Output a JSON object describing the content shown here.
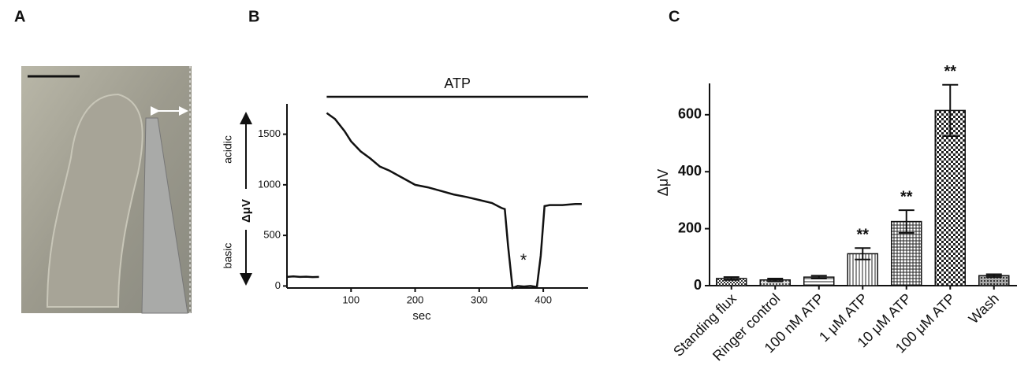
{
  "figure": {
    "panel_a_label": "A"
  },
  "chart_data": [
    {
      "type": "line",
      "label": "B",
      "xlabel": "sec",
      "ylabel": "ΔμV",
      "annotations": {
        "bar_label": "ATP",
        "marker": "*",
        "up": "acidic",
        "down": "basic"
      },
      "x": [
        0,
        10,
        20,
        30,
        40,
        50,
        55,
        62,
        75,
        90,
        100,
        115,
        130,
        145,
        160,
        180,
        200,
        220,
        240,
        260,
        280,
        300,
        320,
        335,
        340,
        345,
        352,
        360,
        370,
        380,
        390,
        396,
        402,
        410,
        430,
        450,
        460
      ],
      "values": [
        90,
        95,
        90,
        92,
        88,
        90,
        null,
        1710,
        1650,
        1530,
        1430,
        1330,
        1260,
        1180,
        1140,
        1070,
        1000,
        975,
        940,
        905,
        880,
        850,
        820,
        770,
        760,
        400,
        -20,
        0,
        -5,
        0,
        -10,
        300,
        790,
        800,
        800,
        810,
        810
      ],
      "color": "#111111",
      "xlim": [
        0,
        470
      ],
      "xticks": [
        100,
        200,
        300,
        400
      ],
      "ylim": [
        -20,
        1800
      ],
      "yticks": [
        0,
        500,
        1000,
        1500
      ]
    },
    {
      "type": "bar",
      "label": "C",
      "ylabel": "ΔμV",
      "categories": [
        "Standing flux",
        "Ringer control",
        "100 nM ATP",
        "1 μM ATP",
        "10 μM ATP",
        "100 μM ATP",
        "Wash"
      ],
      "values": [
        25,
        20,
        30,
        112,
        225,
        615,
        35
      ],
      "errors": [
        5,
        5,
        5,
        20,
        40,
        90,
        5
      ],
      "significance": [
        null,
        null,
        null,
        "**",
        "**",
        "**",
        null
      ],
      "color": "#111111",
      "ylim": [
        0,
        710
      ],
      "yticks": [
        0,
        200,
        400,
        600
      ]
    }
  ]
}
